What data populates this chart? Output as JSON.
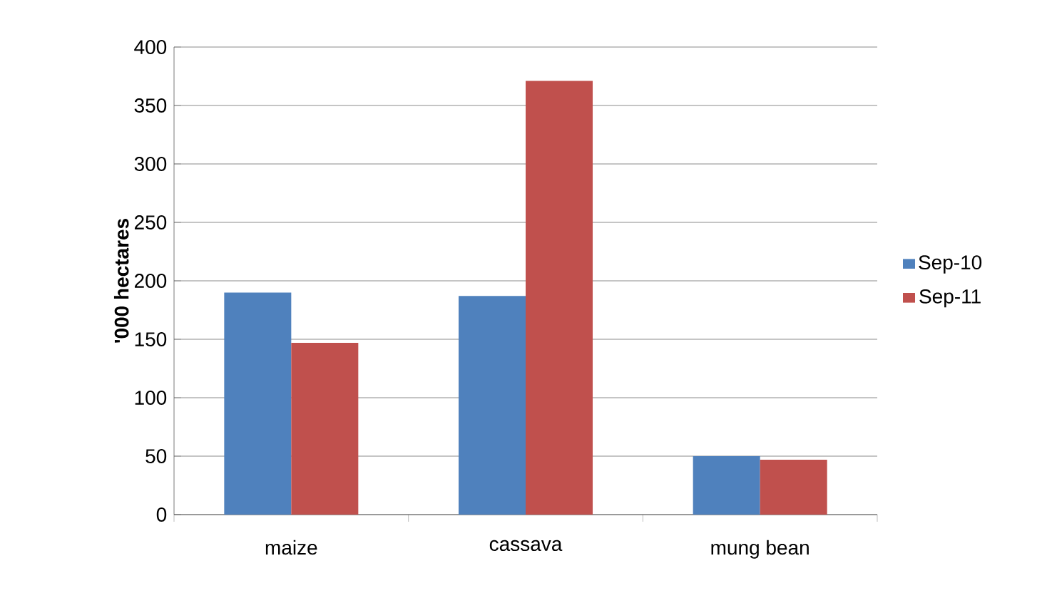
{
  "chart_data": {
    "type": "bar",
    "ylabel": "'000 hectares",
    "categories": [
      "maize",
      "cassava",
      "mung bean"
    ],
    "series": [
      {
        "name": "Sep-10",
        "color": "#4f81bd",
        "values": [
          190,
          187,
          50
        ]
      },
      {
        "name": "Sep-11",
        "color": "#c0504d",
        "values": [
          147,
          371,
          47
        ]
      }
    ],
    "ylim": [
      0,
      400
    ],
    "yticks": [
      0,
      50,
      100,
      150,
      200,
      250,
      300,
      350,
      400
    ],
    "grid": "y",
    "legend": "right"
  }
}
